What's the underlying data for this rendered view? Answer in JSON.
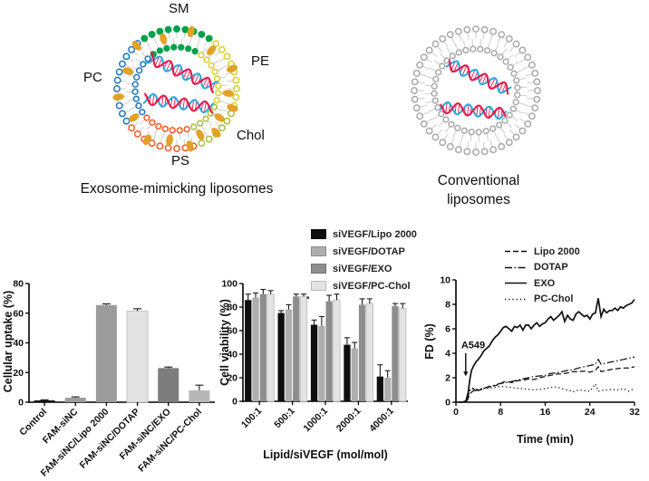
{
  "diagrams": {
    "exosome": {
      "caption": "Exosome-mimicking liposomes",
      "labels": {
        "sm": "SM",
        "pe": "PE",
        "pc": "PC",
        "chol": "Chol",
        "ps": "PS"
      },
      "membrane_segments": [
        {
          "name": "SM",
          "color": "#00a14b",
          "from": 55,
          "to": 125
        },
        {
          "name": "PC",
          "color": "#1b75bc",
          "from": 125,
          "to": 215
        },
        {
          "name": "PS",
          "color": "#f15a24",
          "from": 215,
          "to": 293
        },
        {
          "name": "Chol-zone",
          "color": "#a8bf3a",
          "from": 293,
          "to": 340
        },
        {
          "name": "PE",
          "color": "#d9d026",
          "from": 340,
          "to": 415
        }
      ],
      "cholesterol_color": "#e2a226",
      "sirna_colors": {
        "strand_a": "#e8174b",
        "strand_b": "#2bace2"
      }
    },
    "conventional": {
      "caption": "Conventional liposomes",
      "membrane_color": "#a9a9a9",
      "sirna_colors": {
        "strand_a": "#e8174b",
        "strand_b": "#2bace2"
      }
    }
  },
  "chart_data": [
    {
      "id": "uptake",
      "type": "bar",
      "ylabel": "Cellular uptake (%)",
      "ylim": [
        0,
        80
      ],
      "yticks": [
        0,
        20,
        40,
        60,
        80
      ],
      "grid": false,
      "categories": [
        "Control",
        "FAM-siNC",
        "FAM-siNC/Lipo 2000",
        "FAM-siNC/DOTAP",
        "FAM-siNC/EXO",
        "FAM-siNC/PC-Chol"
      ],
      "values": [
        1.2,
        3.0,
        65.5,
        61.5,
        23.0,
        8.0
      ],
      "errors": [
        0.4,
        0.6,
        0.8,
        1.5,
        0.7,
        3.5
      ],
      "bar_colors": [
        "#0f0f0f",
        "#9c9c9c",
        "#9c9c9c",
        "#e3e3e3",
        "#7d7d7d",
        "#b7b7b7"
      ]
    },
    {
      "id": "viability",
      "type": "bar",
      "grouped": true,
      "ylabel": "Cell viability (%)",
      "xlabel": "Lipid/siVEGF (mol/mol)",
      "ylim": [
        0,
        100
      ],
      "yticks": [
        0,
        20,
        40,
        60,
        80,
        100
      ],
      "grid": false,
      "legend_position": "top",
      "categories": [
        "100:1",
        "500:1",
        "1000:1",
        "2000:1",
        "4000:1"
      ],
      "series": [
        {
          "name": "siVEGF/Lipo 2000",
          "color": "#0f0f0f",
          "values": [
            86,
            75,
            65,
            48,
            21
          ],
          "errors": [
            5,
            2,
            4,
            6,
            10
          ]
        },
        {
          "name": "siVEGF/DOTAP",
          "color": "#aeaeae",
          "values": [
            88,
            78,
            64,
            45,
            20
          ],
          "errors": [
            4,
            4,
            8,
            5,
            6
          ]
        },
        {
          "name": "siVEGF/EXO",
          "color": "#8e8e8e",
          "values": [
            91,
            89,
            85,
            82,
            81
          ],
          "errors": [
            4,
            2,
            5,
            5,
            2
          ]
        },
        {
          "name": "siVEGF/PC-Chol",
          "color": "#e3e3e3",
          "values": [
            91,
            89,
            86,
            83,
            79
          ],
          "errors": [
            3,
            2,
            5,
            4,
            4
          ]
        }
      ],
      "significance": {
        "category": "500:1",
        "marker": "*",
        "y": 88
      }
    },
    {
      "id": "fd",
      "type": "line",
      "ylabel": "FD (%)",
      "xlabel": "Time (min)",
      "ylim": [
        0,
        10
      ],
      "xlim": [
        0,
        32
      ],
      "yticks": [
        0,
        2,
        4,
        6,
        8,
        10
      ],
      "xticks": [
        0,
        8,
        16,
        24,
        32
      ],
      "grid": false,
      "legend_position": "top-right",
      "annotation": {
        "text": "A549",
        "x": 2,
        "text_y": 4.4,
        "arrow_from_y": 4.0,
        "arrow_to_y": 2.8
      },
      "series": [
        {
          "name": "Lipo 2000",
          "style": "dashed",
          "points": [
            [
              2,
              0.1
            ],
            [
              2.5,
              0.7
            ],
            [
              3,
              0.9
            ],
            [
              3.5,
              1.0
            ],
            [
              4,
              0.95
            ],
            [
              5,
              1.1
            ],
            [
              6,
              1.3
            ],
            [
              7,
              1.35
            ],
            [
              8,
              1.5
            ],
            [
              8.5,
              1.65
            ],
            [
              9,
              1.7
            ],
            [
              10,
              1.6
            ],
            [
              11,
              1.75
            ],
            [
              12,
              1.8
            ],
            [
              13,
              1.9
            ],
            [
              14,
              1.85
            ],
            [
              15,
              2.0
            ],
            [
              16,
              2.1
            ],
            [
              17,
              2.2
            ],
            [
              18,
              2.3
            ],
            [
              19,
              2.3
            ],
            [
              20,
              2.4
            ],
            [
              21,
              2.5
            ],
            [
              22,
              2.5
            ],
            [
              23,
              2.55
            ],
            [
              24,
              2.45
            ],
            [
              25,
              2.6
            ],
            [
              25.5,
              2.9
            ],
            [
              26,
              2.5
            ],
            [
              27,
              2.6
            ],
            [
              28,
              2.7
            ],
            [
              29,
              2.75
            ],
            [
              30,
              2.8
            ],
            [
              31,
              2.8
            ],
            [
              32,
              2.9
            ]
          ]
        },
        {
          "name": "DOTAP",
          "style": "dashdot",
          "points": [
            [
              2,
              0.2
            ],
            [
              2.5,
              1.0
            ],
            [
              3,
              1.15
            ],
            [
              3.5,
              0.95
            ],
            [
              4,
              1.05
            ],
            [
              5,
              1.15
            ],
            [
              6,
              1.25
            ],
            [
              7,
              1.4
            ],
            [
              8,
              1.55
            ],
            [
              9,
              1.6
            ],
            [
              10,
              1.7
            ],
            [
              11,
              1.8
            ],
            [
              12,
              1.9
            ],
            [
              13,
              2.0
            ],
            [
              14,
              2.1
            ],
            [
              15,
              2.15
            ],
            [
              16,
              2.2
            ],
            [
              17,
              2.35
            ],
            [
              18,
              2.4
            ],
            [
              19,
              2.5
            ],
            [
              20,
              2.6
            ],
            [
              21,
              2.65
            ],
            [
              22,
              2.8
            ],
            [
              23,
              2.9
            ],
            [
              24,
              3.0
            ],
            [
              25,
              3.1
            ],
            [
              25.5,
              3.5
            ],
            [
              26,
              3.1
            ],
            [
              27,
              3.2
            ],
            [
              28,
              3.3
            ],
            [
              29,
              3.4
            ],
            [
              30,
              3.5
            ],
            [
              31,
              3.6
            ],
            [
              32,
              3.7
            ]
          ]
        },
        {
          "name": "EXO",
          "style": "solid",
          "points": [
            [
              0.5,
              0
            ],
            [
              1.2,
              0
            ],
            [
              1.8,
              0.1
            ],
            [
              2.2,
              0.8
            ],
            [
              2.5,
              1.9
            ],
            [
              2.8,
              2.6
            ],
            [
              3.2,
              3.0
            ],
            [
              3.6,
              3.3
            ],
            [
              4,
              3.5
            ],
            [
              4.5,
              3.8
            ],
            [
              5,
              4.2
            ],
            [
              5.5,
              4.4
            ],
            [
              6,
              4.6
            ],
            [
              6.5,
              5.0
            ],
            [
              7,
              5.3
            ],
            [
              7.5,
              5.5
            ],
            [
              8,
              5.8
            ],
            [
              8.5,
              6.1
            ],
            [
              9,
              6.2
            ],
            [
              9.5,
              6.0
            ],
            [
              10,
              5.8
            ],
            [
              10.5,
              6.2
            ],
            [
              11,
              6.1
            ],
            [
              11.5,
              6.3
            ],
            [
              12,
              5.9
            ],
            [
              12.5,
              6.3
            ],
            [
              13,
              6.3
            ],
            [
              13.5,
              6.0
            ],
            [
              14,
              6.3
            ],
            [
              14.5,
              6.5
            ],
            [
              15,
              6.2
            ],
            [
              15.5,
              6.4
            ],
            [
              16,
              6.5
            ],
            [
              16.5,
              6.8
            ],
            [
              17,
              7.0
            ],
            [
              17.5,
              6.7
            ],
            [
              18,
              6.9
            ],
            [
              18.5,
              7.1
            ],
            [
              19,
              7.4
            ],
            [
              19.5,
              6.6
            ],
            [
              20,
              7.1
            ],
            [
              20.5,
              6.8
            ],
            [
              21,
              6.7
            ],
            [
              21.5,
              7.2
            ],
            [
              22,
              7.4
            ],
            [
              22.5,
              7.2
            ],
            [
              23,
              7.0
            ],
            [
              23.5,
              7.1
            ],
            [
              24,
              6.8
            ],
            [
              24.5,
              7.2
            ],
            [
              25,
              7.3
            ],
            [
              25.5,
              8.5
            ],
            [
              26,
              7.0
            ],
            [
              26.5,
              7.6
            ],
            [
              27,
              7.3
            ],
            [
              27.5,
              7.5
            ],
            [
              28,
              7.5
            ],
            [
              28.5,
              7.7
            ],
            [
              29,
              7.5
            ],
            [
              29.5,
              7.8
            ],
            [
              30,
              7.7
            ],
            [
              30.5,
              7.9
            ],
            [
              31,
              8.0
            ],
            [
              31.5,
              8.1
            ],
            [
              32,
              8.4
            ]
          ]
        },
        {
          "name": "PC-Chol",
          "style": "dotted",
          "points": [
            [
              2,
              0.3
            ],
            [
              2.5,
              1.0
            ],
            [
              3,
              1.1
            ],
            [
              4,
              1.0
            ],
            [
              5,
              1.1
            ],
            [
              6,
              1.15
            ],
            [
              7,
              1.2
            ],
            [
              8,
              1.3
            ],
            [
              9,
              1.25
            ],
            [
              10,
              1.2
            ],
            [
              11,
              1.15
            ],
            [
              12,
              1.1
            ],
            [
              13,
              1.05
            ],
            [
              14,
              1.0
            ],
            [
              15,
              1.05
            ],
            [
              16,
              1.1
            ],
            [
              17,
              1.2
            ],
            [
              18,
              1.25
            ],
            [
              19,
              1.1
            ],
            [
              20,
              1.0
            ],
            [
              21,
              0.85
            ],
            [
              22,
              1.0
            ],
            [
              23,
              0.95
            ],
            [
              24,
              0.9
            ],
            [
              25,
              1.5
            ],
            [
              25.5,
              0.9
            ],
            [
              26,
              0.95
            ],
            [
              27,
              1.0
            ],
            [
              28,
              1.05
            ],
            [
              29,
              1.0
            ],
            [
              30,
              1.1
            ],
            [
              31,
              0.9
            ],
            [
              32,
              1.1
            ]
          ]
        }
      ]
    }
  ]
}
